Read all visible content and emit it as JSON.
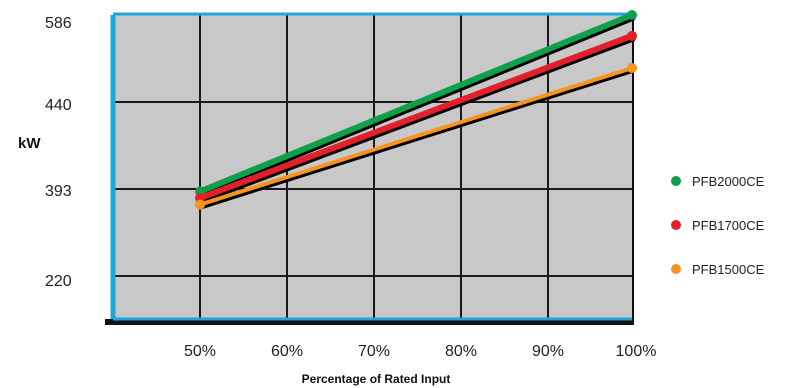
{
  "chart_data": {
    "type": "line",
    "title": "",
    "xlabel": "Percentage of Rated Input",
    "ylabel": "kW",
    "x_categories": [
      "50%",
      "60%",
      "70%",
      "80%",
      "90%",
      "100%"
    ],
    "y_ticks": [
      "586",
      "440",
      "393",
      "220"
    ],
    "grid": true,
    "legend_position": "right",
    "series": [
      {
        "name": "PFB2000CE",
        "color": "#0ea04b",
        "x_start": "50%",
        "x_end": "100%",
        "y_start": 388,
        "y_end": 586
      },
      {
        "name": "PFB1700CE",
        "color": "#e2202a",
        "x_start": "50%",
        "x_end": "100%",
        "y_start": 375,
        "y_end": 551
      },
      {
        "name": "PFB1500CE",
        "color": "#f7941d",
        "x_start": "50%",
        "x_end": "100%",
        "y_start": 362,
        "y_end": 497
      }
    ],
    "colors": {
      "plot_background": "#c8c8c8",
      "grid": "#1a1a1a",
      "frame_left_top": "#1ba8e0",
      "frame_bottom": "#1ba8e0"
    }
  }
}
